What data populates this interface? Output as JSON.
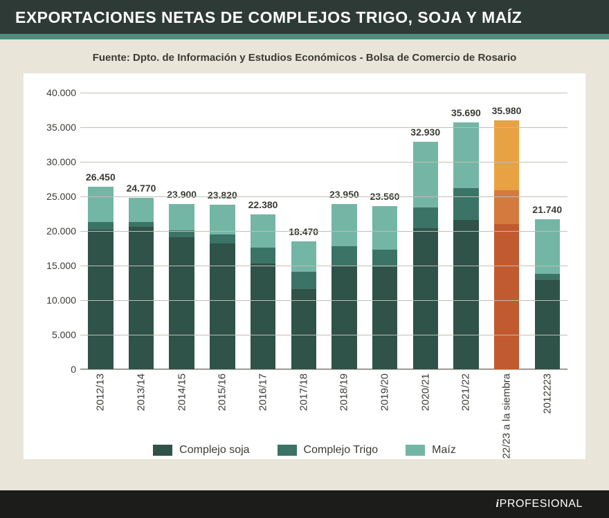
{
  "title": "EXPORTACIONES NETAS DE COMPLEJOS TRIGO, SOJA Y MAÍZ",
  "source": "Fuente: Dpto. de Información y Estudios Económicos - Bolsa de Comercio de Rosario",
  "brand_i": "i",
  "brand_rest": "PROFESIONAL",
  "colors": {
    "page_bg": "#eae5d9",
    "title_bg": "#2e3a36",
    "accent": "#4f8d7f",
    "chart_bg": "#ffffff",
    "grid": "#bfbdb3",
    "baseline": "#7a786f",
    "text": "#3a3a34",
    "footer_bg": "#1c1c1a"
  },
  "chart": {
    "type": "stacked-bar",
    "ylim": [
      0,
      40000
    ],
    "ytick_step": 5000,
    "yticks": [
      "0",
      "5.000",
      "10.000",
      "15.000",
      "20.000",
      "25.000",
      "30.000",
      "35.000",
      "40.000"
    ],
    "bar_width_pct": 62,
    "title_fontsize": 23,
    "label_fontsize": 15,
    "value_fontsize": 14,
    "series": [
      {
        "key": "soja",
        "label": "Complejo soja",
        "color": "#2f5249",
        "alt_color": "#c25a2f"
      },
      {
        "key": "trigo",
        "label": "Complejo Trigo",
        "color": "#3b7466",
        "alt_color": "#d57a3f"
      },
      {
        "key": "maiz",
        "label": "Maíz",
        "color": "#74b6a6",
        "alt_color": "#e8a244"
      }
    ],
    "categories": [
      {
        "label": "2012/13",
        "total_label": "26.450",
        "total": 26450,
        "soja": 20200,
        "trigo": 1100,
        "maiz": 5150,
        "highlight": false
      },
      {
        "label": "2013/14",
        "total_label": "24.770",
        "total": 24770,
        "soja": 20600,
        "trigo": 700,
        "maiz": 3470,
        "highlight": false
      },
      {
        "label": "2014/15",
        "total_label": "23.900",
        "total": 23900,
        "soja": 19100,
        "trigo": 1000,
        "maiz": 3800,
        "highlight": false
      },
      {
        "label": "2015/16",
        "total_label": "23.820",
        "total": 23820,
        "soja": 18200,
        "trigo": 1300,
        "maiz": 4320,
        "highlight": false
      },
      {
        "label": "2016/17",
        "total_label": "22.380",
        "total": 22380,
        "soja": 15300,
        "trigo": 2300,
        "maiz": 4780,
        "highlight": false
      },
      {
        "label": "2017/18",
        "total_label": "18.470",
        "total": 18470,
        "soja": 11600,
        "trigo": 2500,
        "maiz": 4370,
        "highlight": false
      },
      {
        "label": "2018/19",
        "total_label": "23.950",
        "total": 23950,
        "soja": 15000,
        "trigo": 2800,
        "maiz": 6150,
        "highlight": false
      },
      {
        "label": "2019/20",
        "total_label": "23.560",
        "total": 23560,
        "soja": 14800,
        "trigo": 2500,
        "maiz": 6260,
        "highlight": false
      },
      {
        "label": "2020/21",
        "total_label": "32.930",
        "total": 32930,
        "soja": 20400,
        "trigo": 3000,
        "maiz": 9530,
        "highlight": false
      },
      {
        "label": "2021/22",
        "total_label": "35.690",
        "total": 35690,
        "soja": 21600,
        "trigo": 4600,
        "maiz": 9490,
        "highlight": false
      },
      {
        "label": "22/23 a la siembra",
        "total_label": "35.980",
        "total": 35980,
        "soja": 21000,
        "trigo": 4900,
        "maiz": 10080,
        "highlight": true
      },
      {
        "label": "2012223",
        "total_label": "21.740",
        "total": 21740,
        "soja": 12900,
        "trigo": 900,
        "maiz": 7940,
        "highlight": false
      }
    ]
  }
}
